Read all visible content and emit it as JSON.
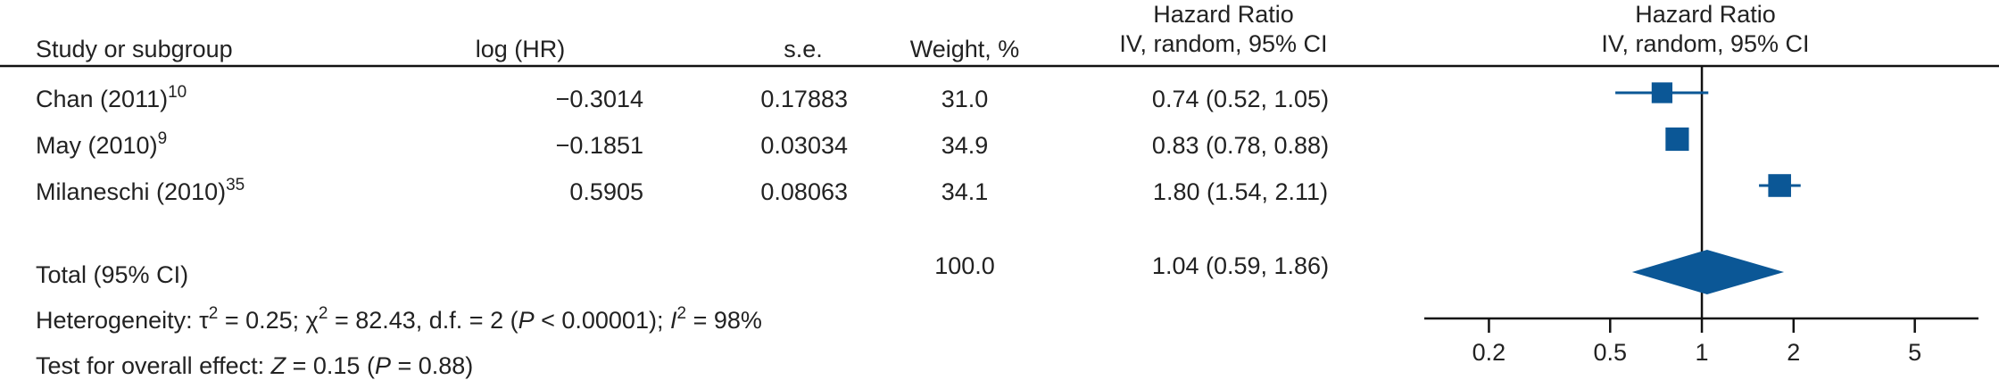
{
  "chart_data": {
    "type": "forest",
    "headers": [
      "Study or subgroup",
      "log (HR)",
      "s.e.",
      "Weight, %"
    ],
    "hr_header": [
      "Hazard Ratio",
      "IV, random, 95% CI"
    ],
    "plot_header": [
      "Hazard Ratio",
      "IV, random, 95% CI"
    ],
    "categories": [
      "Chan (2011)",
      "May (2010)",
      "Milaneschi (2010)"
    ],
    "refs": [
      "10",
      "9",
      "35"
    ],
    "log_hr": [
      -0.3014,
      -0.1851,
      0.5905
    ],
    "log_hr_labels": [
      "−0.3014",
      "−0.1851",
      "0.5905"
    ],
    "se": [
      0.17883,
      0.03034,
      0.08063
    ],
    "weights": [
      31.0,
      34.9,
      34.1
    ],
    "weight_labels": [
      "31.0",
      "34.9",
      "34.1"
    ],
    "values": [
      0.74,
      0.83,
      1.8
    ],
    "ci_low": [
      0.52,
      0.78,
      1.54
    ],
    "ci_high": [
      1.05,
      0.88,
      2.11
    ],
    "value_labels": [
      "0.74 (0.52, 1.05)",
      "0.83 (0.78, 0.88)",
      "1.80 (1.54, 2.11)"
    ],
    "total": {
      "label": "Total (95% CI)",
      "weight": 100,
      "weight_label": "100.0",
      "value": 1.04,
      "ci_low": 0.59,
      "ci_high": 1.86,
      "value_label": "1.04 (0.59, 1.86)"
    },
    "heterogeneity": [
      "Heterogeneity: τ",
      "2",
      " = 0.25; χ",
      "2",
      " = 82.43, d.f. = 2 (",
      "P",
      " < 0.00001); ",
      "I",
      "2",
      " = 98%"
    ],
    "overall": [
      "Test for overall effect: ",
      "Z",
      " = 0.15 (",
      "P",
      " = 0.88)"
    ],
    "color": "#0b5796",
    "log_scale": true,
    "reference_line": 1,
    "xlim": [
      0.1227,
      8.09
    ],
    "xticks": [
      0.2,
      0.5,
      1,
      2,
      5
    ]
  }
}
